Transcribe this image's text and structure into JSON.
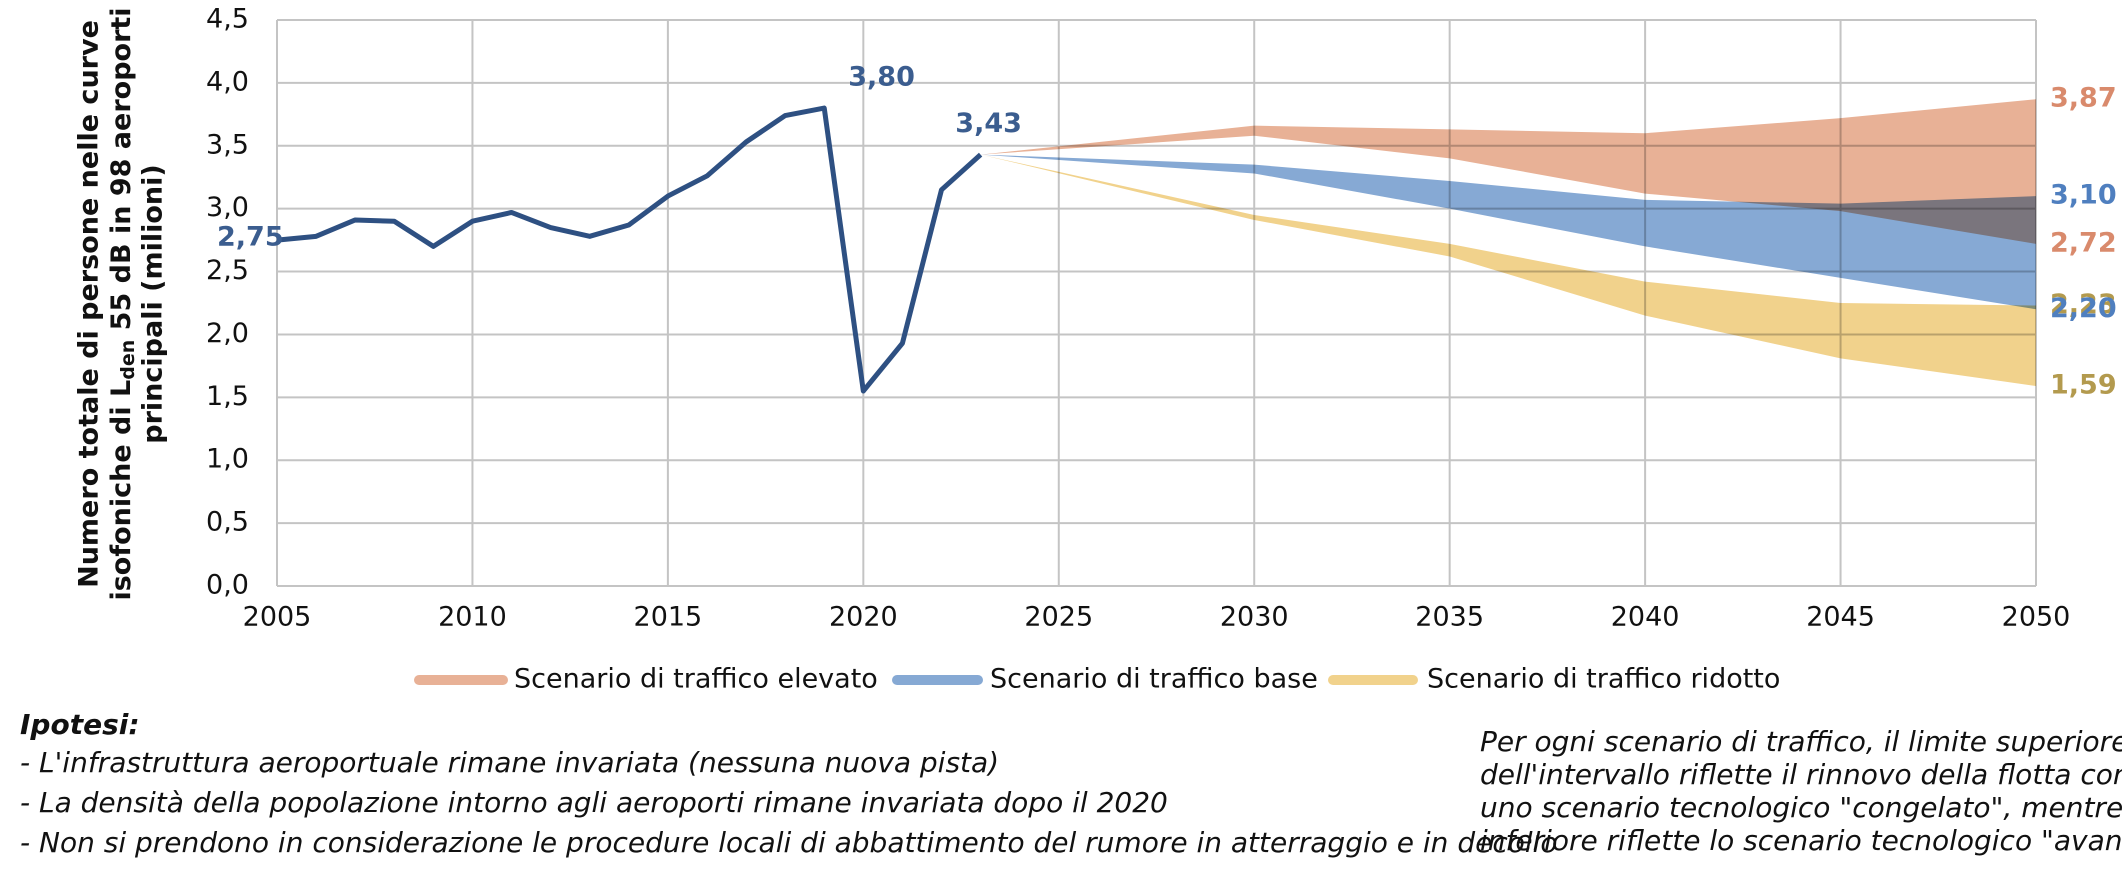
{
  "chart_data": {
    "type": "line",
    "ylabel": {
      "line1": "Numero totale di persone nelle curve",
      "line2_a": "isofoniche di L",
      "line2_sub": "den",
      "line2_b": " 55 dB in 98 aeroporti",
      "line3": "principali (milioni)"
    },
    "xlim": [
      2005,
      2050
    ],
    "xticks": [
      2005,
      2010,
      2015,
      2020,
      2025,
      2030,
      2035,
      2040,
      2045,
      2050
    ],
    "ylim": [
      0,
      4.5
    ],
    "yticks": [
      {
        "value": 0,
        "label": "0,0"
      },
      {
        "value": 0.5,
        "label": "0,5"
      },
      {
        "value": 1,
        "label": "1,0"
      },
      {
        "value": 1.5,
        "label": "1,5"
      },
      {
        "value": 2,
        "label": "2,0"
      },
      {
        "value": 2.5,
        "label": "2,5"
      },
      {
        "value": 3,
        "label": "3,0"
      },
      {
        "value": 3.5,
        "label": "3,5"
      },
      {
        "value": 4,
        "label": "4,0"
      },
      {
        "value": 4.5,
        "label": "4,5"
      }
    ],
    "grid": true,
    "history": {
      "color": "#2e5082",
      "x": [
        2005,
        2006,
        2007,
        2008,
        2009,
        2010,
        2011,
        2012,
        2013,
        2014,
        2015,
        2016,
        2017,
        2018,
        2019,
        2020,
        2021,
        2022,
        2023
      ],
      "values": [
        2.75,
        2.78,
        2.91,
        2.9,
        2.7,
        2.9,
        2.97,
        2.85,
        2.78,
        2.87,
        3.1,
        3.26,
        3.53,
        3.74,
        3.8,
        1.55,
        1.93,
        3.15,
        3.43
      ]
    },
    "bands": [
      {
        "name": "Scenario di traffico elevato",
        "color": "#e8b196",
        "x": [
          2023,
          2030,
          2035,
          2040,
          2045,
          2050
        ],
        "upper": [
          3.43,
          3.66,
          3.63,
          3.6,
          3.72,
          3.87
        ],
        "lower": [
          3.43,
          3.58,
          3.4,
          3.12,
          2.98,
          2.72
        ]
      },
      {
        "name": "Scenario di traffico base",
        "color": "#86a9d4",
        "x": [
          2023,
          2030,
          2035,
          2040,
          2045,
          2050
        ],
        "upper": [
          3.43,
          3.35,
          3.22,
          3.07,
          3.04,
          3.1
        ],
        "lower": [
          3.43,
          3.28,
          3.0,
          2.7,
          2.45,
          2.2
        ]
      },
      {
        "name": "Scenario di traffico ridotto",
        "color": "#f1d28c",
        "x": [
          2023,
          2030,
          2035,
          2040,
          2045,
          2050
        ],
        "upper": [
          3.43,
          2.95,
          2.72,
          2.42,
          2.25,
          2.23
        ],
        "lower": [
          3.43,
          2.91,
          2.62,
          2.15,
          1.81,
          1.59
        ]
      }
    ],
    "annotations": [
      {
        "x": 2005,
        "value": 2.75,
        "label": "2,75",
        "color": "#3b5d8f"
      },
      {
        "x": 2019,
        "value": 3.8,
        "label": "3,80",
        "color": "#3b5d8f"
      },
      {
        "x": 2023,
        "value": 3.43,
        "label": "3,43",
        "color": "#3b5d8f"
      },
      {
        "x": 2050,
        "value": 3.87,
        "label": "3,87",
        "color": "#d98a6c"
      },
      {
        "x": 2050,
        "value": 3.1,
        "label": "3,10",
        "color": "#4f7fbf"
      },
      {
        "x": 2050,
        "value": 2.72,
        "label": "2,72",
        "color": "#d98a6c"
      },
      {
        "x": 2050,
        "value": 2.23,
        "label": "2,23",
        "color": "#b39a4e"
      },
      {
        "x": 2050,
        "value": 2.2,
        "label": "2,20",
        "color": "#4f7fbf"
      },
      {
        "x": 2050,
        "value": 1.59,
        "label": "1,59",
        "color": "#b39a4e"
      }
    ],
    "notes": {
      "heading": "Ipotesi:",
      "items": [
        "- L'infrastruttura aeroportuale rimane invariata (nessuna nuova pista)",
        "- La densità della popolazione intorno agli aeroporti rimane invariata dopo il 2020",
        "- Non si prendono in considerazione le procedure locali di abbattimento del rumore in atterraggio e in decollo"
      ],
      "side": [
        "Per ogni scenario di traffico, il limite superiore",
        "dell'intervallo riflette il rinnovo della flotta con",
        "uno scenario tecnologico \"congelato\", mentre il l",
        "inferiore riflette lo scenario tecnologico \"avanzat"
      ]
    }
  }
}
